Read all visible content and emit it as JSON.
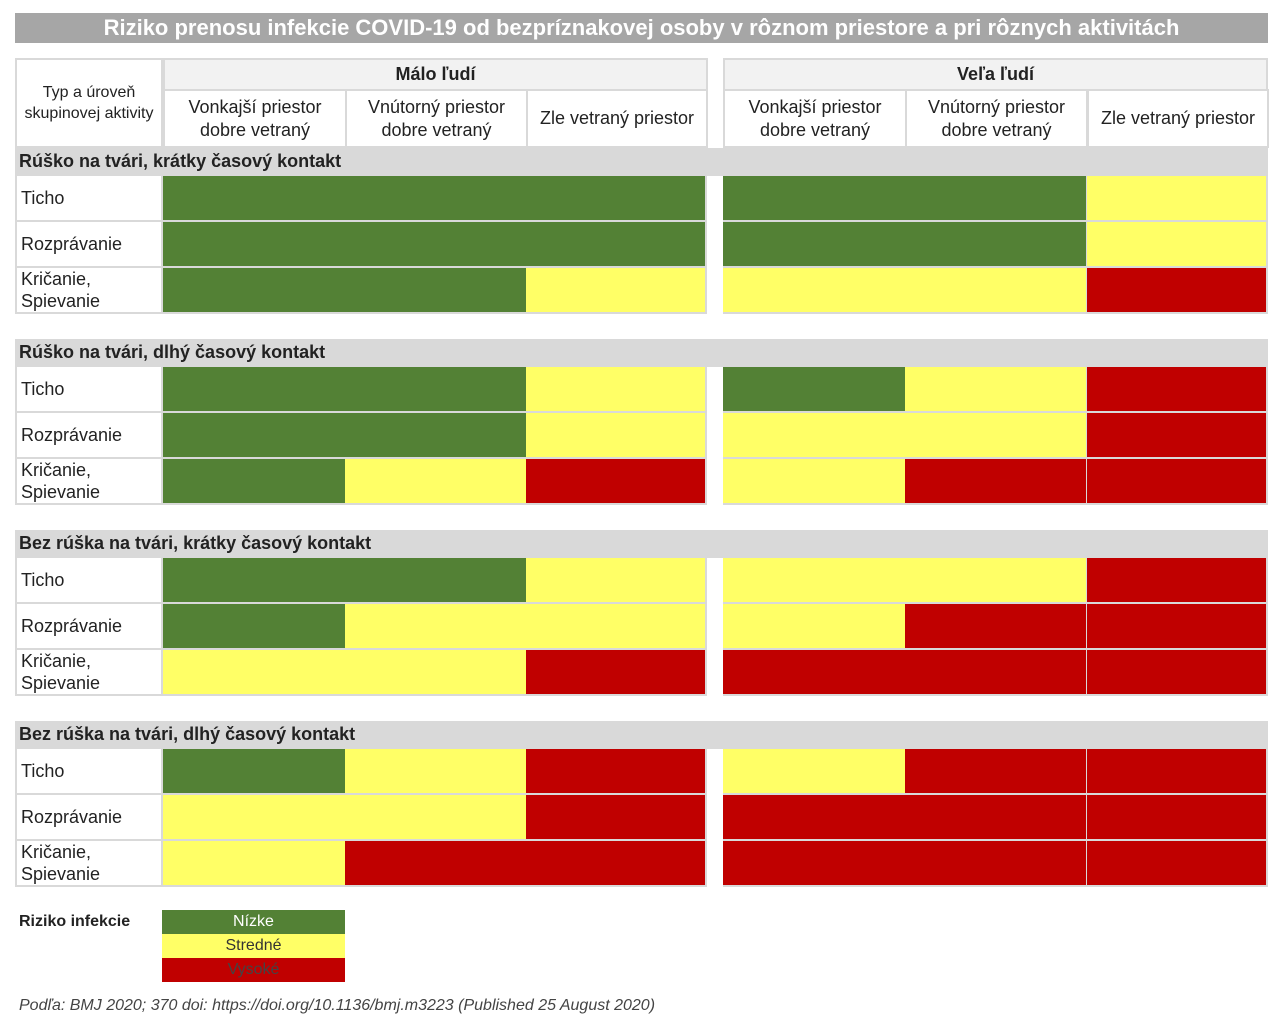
{
  "chart_data": {
    "type": "heatmap",
    "title": "Riziko prenosu infekcie COVID-19 od bezpríznakovej osoby v rôznom priestore a pri rôznych aktivitách",
    "corner_label": "Typ a úroveň skupinovej aktivity",
    "column_groups": [
      {
        "label": "Málo ľudí",
        "columns": [
          "Vonkajší priestor dobre vetraný",
          "Vnútorný priestor dobre vetraný",
          "Zle vetraný priestor"
        ]
      },
      {
        "label": "Veľa ľudí",
        "columns": [
          "Vonkajší priestor dobre vetraný",
          "Vnútorný priestor dobre vetraný",
          "Zle vetraný priestor"
        ]
      }
    ],
    "row_labels": [
      "Ticho",
      "Rozprávanie",
      "Kričanie, Spievanie"
    ],
    "sections": [
      {
        "label": "Rúško na tvári, krátky časový kontakt",
        "values": [
          [
            "Nízke",
            "Nízke",
            "Nízke",
            "Nízke",
            "Nízke",
            "Stredné"
          ],
          [
            "Nízke",
            "Nízke",
            "Nízke",
            "Nízke",
            "Nízke",
            "Stredné"
          ],
          [
            "Nízke",
            "Nízke",
            "Stredné",
            "Stredné",
            "Stredné",
            "Vysoké"
          ]
        ]
      },
      {
        "label": "Rúško na tvári, dlhý časový kontakt",
        "values": [
          [
            "Nízke",
            "Nízke",
            "Stredné",
            "Nízke",
            "Stredné",
            "Vysoké"
          ],
          [
            "Nízke",
            "Nízke",
            "Stredné",
            "Stredné",
            "Stredné",
            "Vysoké"
          ],
          [
            "Nízke",
            "Stredné",
            "Vysoké",
            "Stredné",
            "Vysoké",
            "Vysoké"
          ]
        ]
      },
      {
        "label": "Bez rúška na tvári, krátky časový kontakt",
        "values": [
          [
            "Nízke",
            "Nízke",
            "Stredné",
            "Stredné",
            "Stredné",
            "Vysoké"
          ],
          [
            "Nízke",
            "Stredné",
            "Stredné",
            "Stredné",
            "Vysoké",
            "Vysoké"
          ],
          [
            "Stredné",
            "Stredné",
            "Vysoké",
            "Vysoké",
            "Vysoké",
            "Vysoké"
          ]
        ]
      },
      {
        "label": "Bez rúška na tvári, dlhý časový kontakt",
        "values": [
          [
            "Nízke",
            "Stredné",
            "Vysoké",
            "Stredné",
            "Vysoké",
            "Vysoké"
          ],
          [
            "Stredné",
            "Stredné",
            "Vysoké",
            "Vysoké",
            "Vysoké",
            "Vysoké"
          ],
          [
            "Stredné",
            "Vysoké",
            "Vysoké",
            "Vysoké",
            "Vysoké",
            "Vysoké"
          ]
        ]
      }
    ],
    "legend": {
      "title": "Riziko infekcie",
      "levels": [
        {
          "label": "Nízke",
          "color": "#538135",
          "text_color": "#ffffff"
        },
        {
          "label": "Stredné",
          "color": "#ffff66",
          "text_color": "#333333"
        },
        {
          "label": "Vysoké",
          "color": "#c00000",
          "text_color": "#444444"
        }
      ]
    }
  },
  "source": "Podľa: BMJ 2020; 370 doi: https://doi.org/10.1136/bmj.m3223 (Published 25 August 2020)"
}
